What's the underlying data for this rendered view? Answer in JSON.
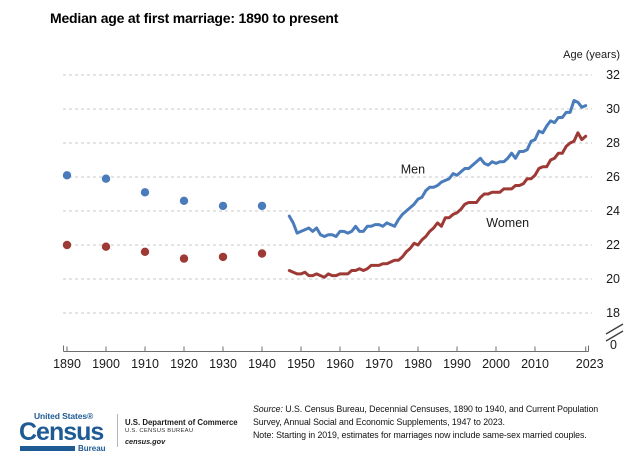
{
  "title": "Median age at first marriage: 1890 to present",
  "chart_data": {
    "type": "line",
    "title": "Median age at first marriage: 1890 to present",
    "xlabel": "",
    "ylabel": "Age (years)",
    "ylim": [
      18,
      32
    ],
    "y_axis_side": "right",
    "y_axis_break_to_zero": true,
    "y_break_label": "0",
    "y_ticks": [
      32,
      30,
      28,
      26,
      24,
      22,
      20,
      18
    ],
    "x_ticks": [
      1890,
      1900,
      1910,
      1920,
      1930,
      1940,
      1950,
      1960,
      1970,
      1980,
      1990,
      2000,
      2010,
      2023
    ],
    "grid": "horizontal-dashed",
    "legend": "inline-labels",
    "colors": {
      "men": "#4a7cbb",
      "women": "#9d3a35",
      "grid": "#c9c9c9",
      "axis": "#6e6e6e",
      "text": "#1a1a1a"
    },
    "segments": [
      {
        "name": "Men (decennial census points)",
        "series": "men",
        "style": "points",
        "x": [
          1890,
          1900,
          1910,
          1920,
          1930,
          1940
        ],
        "y": [
          26.1,
          25.9,
          25.1,
          24.6,
          24.3,
          24.3
        ]
      },
      {
        "name": "Women (decennial census points)",
        "series": "women",
        "style": "points",
        "x": [
          1890,
          1900,
          1910,
          1920,
          1930,
          1940
        ],
        "y": [
          22.0,
          21.9,
          21.6,
          21.2,
          21.3,
          21.5
        ]
      },
      {
        "name": "Men (CPS annual line)",
        "series": "men",
        "style": "line",
        "start_year": 1947,
        "y": [
          23.7,
          23.3,
          22.7,
          22.8,
          22.9,
          23.0,
          22.8,
          23.0,
          22.6,
          22.5,
          22.6,
          22.6,
          22.5,
          22.8,
          22.8,
          22.7,
          22.8,
          23.1,
          22.8,
          22.8,
          23.1,
          23.1,
          23.2,
          23.2,
          23.1,
          23.3,
          23.2,
          23.1,
          23.5,
          23.8,
          24.0,
          24.2,
          24.4,
          24.7,
          24.8,
          25.2,
          25.4,
          25.4,
          25.5,
          25.7,
          25.8,
          25.9,
          26.2,
          26.1,
          26.3,
          26.5,
          26.5,
          26.7,
          26.9,
          27.1,
          26.8,
          26.7,
          26.9,
          26.8,
          26.9,
          26.9,
          27.1,
          27.4,
          27.1,
          27.5,
          27.5,
          27.6,
          28.1,
          28.2,
          28.7,
          28.6,
          29.0,
          29.3,
          29.2,
          29.5,
          29.5,
          29.8,
          29.8,
          30.5,
          30.4,
          30.1,
          30.2
        ]
      },
      {
        "name": "Women (CPS annual line)",
        "series": "women",
        "style": "line",
        "start_year": 1947,
        "y": [
          20.5,
          20.4,
          20.3,
          20.3,
          20.4,
          20.2,
          20.2,
          20.3,
          20.2,
          20.1,
          20.3,
          20.2,
          20.2,
          20.3,
          20.3,
          20.3,
          20.5,
          20.5,
          20.6,
          20.5,
          20.6,
          20.8,
          20.8,
          20.8,
          20.9,
          20.9,
          21.0,
          21.1,
          21.1,
          21.3,
          21.6,
          21.8,
          22.1,
          22.0,
          22.3,
          22.5,
          22.8,
          23.0,
          23.3,
          23.1,
          23.6,
          23.6,
          23.8,
          23.9,
          24.1,
          24.4,
          24.5,
          24.5,
          24.5,
          24.8,
          25.0,
          25.0,
          25.1,
          25.1,
          25.1,
          25.3,
          25.3,
          25.3,
          25.5,
          25.5,
          25.6,
          25.9,
          25.9,
          26.1,
          26.5,
          26.6,
          26.6,
          27.0,
          27.1,
          27.4,
          27.4,
          27.8,
          28.0,
          28.1,
          28.6,
          28.2,
          28.4
        ]
      }
    ],
    "annotations": [
      {
        "text": "Men",
        "series": "men",
        "x": 1978.7,
        "y": 26.2
      },
      {
        "text": "Women",
        "series": "women",
        "x": 2003,
        "y": 23.05
      }
    ]
  },
  "footer": {
    "logo": {
      "top": "United States®",
      "main": "Census",
      "sub": "Bureau",
      "color": "#1e5a94"
    },
    "department": {
      "line1": "U.S. Department of Commerce",
      "line2": "U.S. CENSUS BUREAU",
      "line3": "census.gov"
    },
    "source": {
      "label": "Source:",
      "line1": " U.S. Census Bureau, Decennial Censuses, 1890 to 1940, and Current Population",
      "line2": "Survey, Annual Social and Economic Supplements, 1947 to 2023.",
      "note": "Note: Starting in 2019, estimates for marriages now include same-sex married couples."
    }
  }
}
